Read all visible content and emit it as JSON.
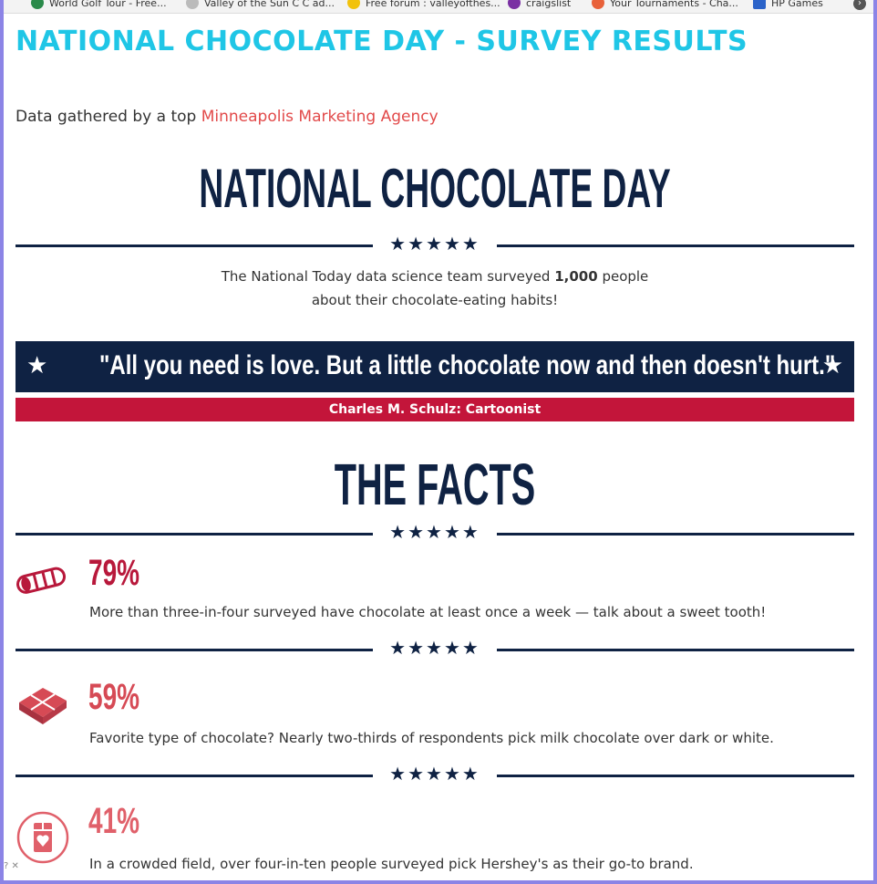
{
  "bookmarks": [
    {
      "label": "World Golf Tour - Free..."
    },
    {
      "label": "Valley of the Sun C C ad..."
    },
    {
      "label": "Free forum : valleyofthes..."
    },
    {
      "label": "craigslist"
    },
    {
      "label": "Your Tournaments - Cha..."
    },
    {
      "label": "HP Games"
    }
  ],
  "page": {
    "survey_title": "NATIONAL CHOCOLATE DAY - SURVEY RESULTS",
    "subline_prefix": "Data gathered by a top ",
    "subline_link": "Minneapolis Marketing Agency",
    "big_title": "NATIONAL CHOCOLATE DAY",
    "divider_stars": "★★★★★",
    "intro_pre": "The National Today data science team surveyed ",
    "intro_bold": "1,000",
    "intro_post": " people",
    "intro_line2": "about their chocolate-eating habits!",
    "quote": "\"All you need is love. But a little chocolate now and then doesn't hurt.\"",
    "quote_star": "★",
    "author": "Charles M. Schulz: Cartoonist",
    "facts_title": "THE FACTS"
  },
  "facts": [
    {
      "percent": "79%",
      "color": "#b8183b",
      "icon": "chocolate-roll-icon",
      "text": "More than three-in-four surveyed have chocolate at least once a week — talk about a sweet tooth!"
    },
    {
      "percent": "59%",
      "color": "#d64a55",
      "icon": "chocolate-bar-icon",
      "text": "Favorite type of chocolate? Nearly two-thirds of respondents pick milk chocolate over dark or white."
    },
    {
      "percent": "41%",
      "color": "#e0606a",
      "icon": "heart-chocolate-icon",
      "text": "In a crowded field, over four-in-ten people surveyed pick Hershey's as their go-to brand."
    }
  ],
  "colors": {
    "navy": "#0f2243",
    "red": "#c3153a",
    "cyan": "#1fc6e6",
    "link": "#e24a4a"
  }
}
